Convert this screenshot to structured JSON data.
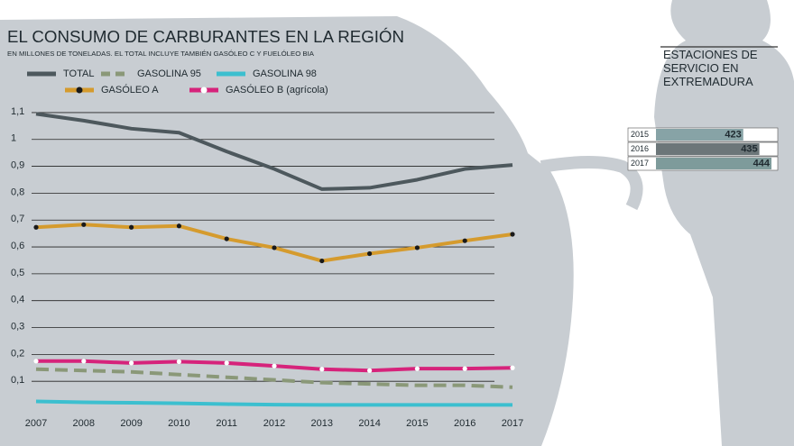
{
  "chart_data": [
    {
      "type": "line",
      "title": "EL CONSUMO DE CARBURANTES EN LA REGIÓN",
      "subtitle": "EN MILLONES DE TONELADAS. EL TOTAL INCLUYE TAMBIÉN GASÓLEO C Y FUELÓLEO BIA",
      "categories": [
        "2007",
        "2008",
        "2009",
        "2010",
        "2011",
        "2012",
        "2013",
        "2014",
        "2015",
        "2016",
        "2017"
      ],
      "ylim": [
        0,
        1.15
      ],
      "yticks": [
        {
          "value": 0.1,
          "label": "0,1"
        },
        {
          "value": 0.2,
          "label": "0,2"
        },
        {
          "value": 0.3,
          "label": "0,3"
        },
        {
          "value": 0.4,
          "label": "0,4"
        },
        {
          "value": 0.5,
          "label": "0,5"
        },
        {
          "value": 0.6,
          "label": "0,6"
        },
        {
          "value": 0.7,
          "label": "0,7"
        },
        {
          "value": 0.8,
          "label": "0,8"
        },
        {
          "value": 0.9,
          "label": "0,9"
        },
        {
          "value": 1,
          "label": "1"
        },
        {
          "value": 1.1,
          "label": "1,1"
        }
      ],
      "grid": true,
      "series": [
        {
          "name": "TOTAL",
          "color": "#4d585d",
          "values": [
            1.095,
            1.07,
            1.04,
            1.025,
            0.955,
            0.89,
            0.815,
            0.82,
            0.85,
            0.89,
            0.905
          ]
        },
        {
          "name": "GASOLINA 95",
          "color": "#8a9878",
          "dashed": true,
          "values": [
            0.145,
            0.14,
            0.135,
            0.125,
            0.115,
            0.105,
            0.095,
            0.09,
            0.085,
            0.085,
            0.078
          ]
        },
        {
          "name": "GASOLINA 98",
          "color": "#3cbfcf",
          "values": [
            0.025,
            0.022,
            0.02,
            0.018,
            0.015,
            0.013,
            0.012,
            0.012,
            0.012,
            0.012,
            0.012
          ]
        },
        {
          "name": "GASÓLEO A",
          "color": "#d59b2e",
          "marker_color": "#1a1a1a",
          "values": [
            0.673,
            0.683,
            0.673,
            0.678,
            0.63,
            0.597,
            0.548,
            0.575,
            0.597,
            0.623,
            0.647
          ]
        },
        {
          "name": "GASÓLEO B (agrícola)",
          "color": "#d6237b",
          "marker_color": "#ffffff",
          "values": [
            0.175,
            0.175,
            0.168,
            0.173,
            0.168,
            0.157,
            0.145,
            0.14,
            0.147,
            0.147,
            0.15
          ]
        }
      ]
    },
    {
      "type": "hbar",
      "title": "ESTACIONES DE SERVICIO EN EXTREMADURA",
      "categories": [
        "2015",
        "2016",
        "2017"
      ],
      "values": [
        423,
        435,
        444
      ],
      "colors": [
        "#87a3a6",
        "#6c7679",
        "#7e9b9b"
      ],
      "xlim": [
        358,
        446
      ]
    }
  ]
}
